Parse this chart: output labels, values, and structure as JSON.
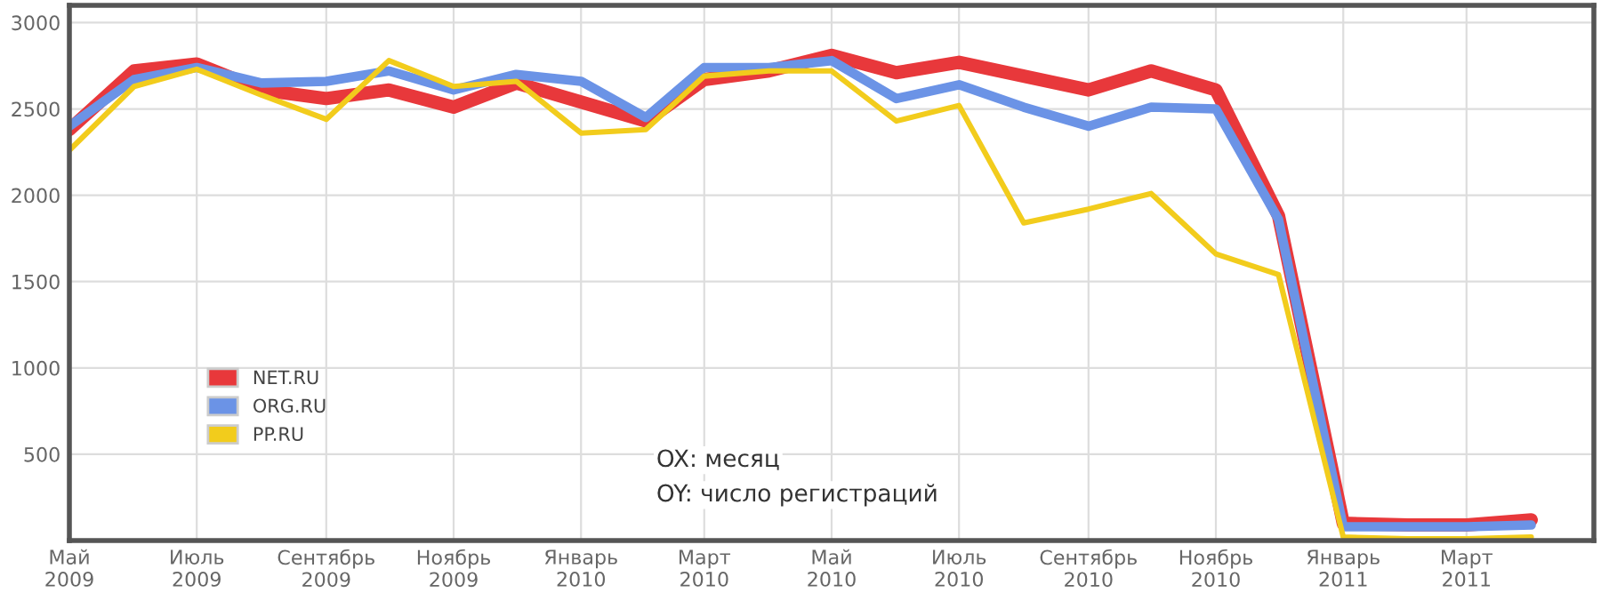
{
  "chart_data": {
    "type": "line",
    "x": [
      "2009-05",
      "2009-06",
      "2009-07",
      "2009-08",
      "2009-09",
      "2009-10",
      "2009-11",
      "2009-12",
      "2010-01",
      "2010-02",
      "2010-03",
      "2010-04",
      "2010-05",
      "2010-06",
      "2010-07",
      "2010-08",
      "2010-09",
      "2010-10",
      "2010-11",
      "2010-12",
      "2011-01",
      "2011-02",
      "2011-03",
      "2011-04"
    ],
    "series": [
      {
        "name": "NET.RU",
        "color": "#e8383b",
        "values": [
          2380,
          2720,
          2760,
          2610,
          2560,
          2610,
          2510,
          2650,
          2540,
          2430,
          2670,
          2720,
          2810,
          2710,
          2770,
          2690,
          2610,
          2720,
          2610,
          1880,
          100,
          90,
          90,
          120
        ]
      },
      {
        "name": "ORG.RU",
        "color": "#6b93e6",
        "values": [
          2400,
          2670,
          2740,
          2650,
          2660,
          2720,
          2610,
          2700,
          2660,
          2450,
          2740,
          2740,
          2780,
          2560,
          2640,
          2510,
          2400,
          2510,
          2500,
          1860,
          80,
          80,
          80,
          90
        ]
      },
      {
        "name": "PP.RU",
        "color": "#f2cc1c",
        "values": [
          2260,
          2630,
          2730,
          2580,
          2440,
          2780,
          2630,
          2660,
          2360,
          2380,
          2690,
          2720,
          2720,
          2430,
          2520,
          1840,
          1920,
          2010,
          1660,
          1540,
          20,
          10,
          10,
          20
        ]
      }
    ],
    "xlim": [
      "2009-05",
      "2011-05"
    ],
    "xticks": [
      {
        "value": "2009-05",
        "label": "Май\n2009"
      },
      {
        "value": "2009-07",
        "label": "Июль\n2009"
      },
      {
        "value": "2009-09",
        "label": "Сентябрь\n2009"
      },
      {
        "value": "2009-11",
        "label": "Ноябрь\n2009"
      },
      {
        "value": "2010-01",
        "label": "Январь\n2010"
      },
      {
        "value": "2010-03",
        "label": "Март\n2010"
      },
      {
        "value": "2010-05",
        "label": "Май\n2010"
      },
      {
        "value": "2010-07",
        "label": "Июль\n2010"
      },
      {
        "value": "2010-09",
        "label": "Сентябрь\n2010"
      },
      {
        "value": "2010-11",
        "label": "Ноябрь\n2010"
      },
      {
        "value": "2011-01",
        "label": "Январь\n2011"
      },
      {
        "value": "2011-03",
        "label": "Март\n2011"
      }
    ],
    "ylim": [
      0,
      3100
    ],
    "yticks": [
      500,
      1000,
      1500,
      2000,
      2500,
      3000
    ],
    "grid": true,
    "legend": "left",
    "marker": "none",
    "line_style": "solid",
    "annotations": [
      "OX: месяц",
      "OY: число регистраций"
    ]
  }
}
